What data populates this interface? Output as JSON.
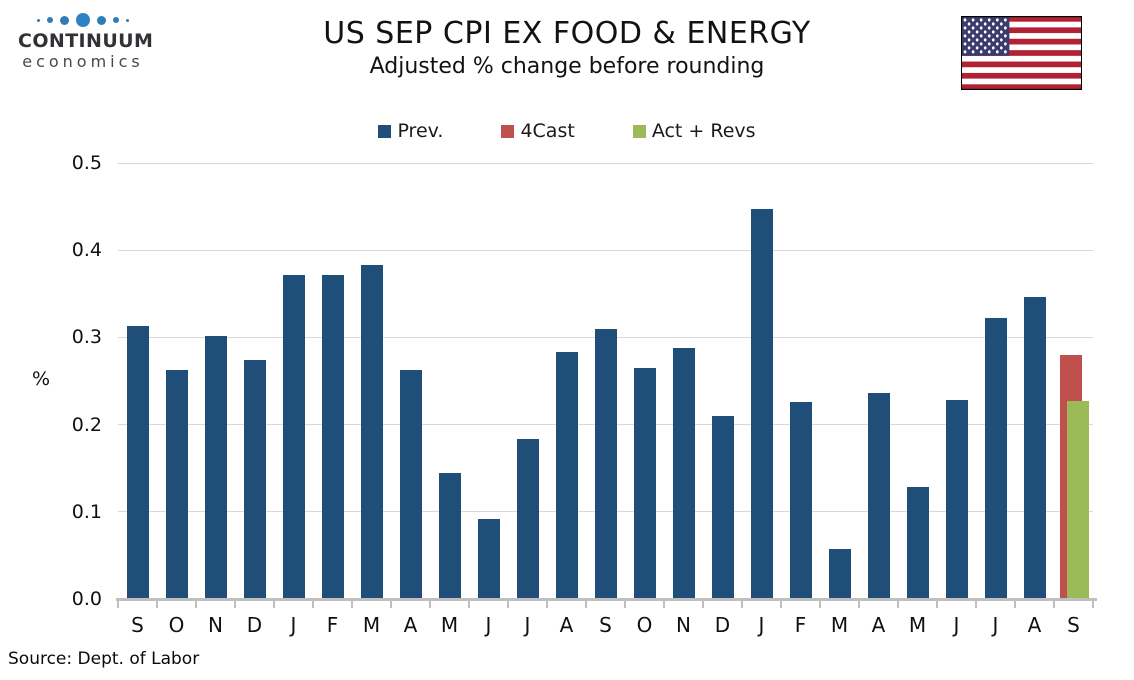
{
  "logo": {
    "name": "CONTINUUM",
    "tagline": "economics"
  },
  "header": {
    "title": "US SEP CPI EX FOOD & ENERGY",
    "subtitle": "Adjusted % change before rounding"
  },
  "source_note": "Source: Dept. of Labor",
  "colors": {
    "prev": "#1f4e79",
    "forecast": "#c0504d",
    "actual": "#9bbb59",
    "gridline": "#d9d9d9",
    "axis": "#bfbfbf",
    "flag_red": "#b22234",
    "flag_blue": "#3c3b6e"
  },
  "chart_data": {
    "type": "bar",
    "title": "US SEP CPI EX FOOD & ENERGY",
    "subtitle": "Adjusted % change before rounding",
    "ylabel": "%",
    "xlabel": "",
    "ylim": [
      0,
      0.5
    ],
    "yticks": [
      0.0,
      0.1,
      0.2,
      0.3,
      0.4,
      0.5
    ],
    "grid": "horizontal",
    "legend_position": "top",
    "categories": [
      "S",
      "O",
      "N",
      "D",
      "J",
      "F",
      "M",
      "A",
      "M",
      "J",
      "J",
      "A",
      "S",
      "O",
      "N",
      "D",
      "J",
      "F",
      "M",
      "A",
      "M",
      "J",
      "J",
      "A",
      "S"
    ],
    "series": [
      {
        "name": "Prev.",
        "color": "#1f4e79",
        "values": [
          0.313,
          0.263,
          0.302,
          0.274,
          0.371,
          0.372,
          0.383,
          0.263,
          0.144,
          0.092,
          0.184,
          0.283,
          0.31,
          0.265,
          0.288,
          0.21,
          0.447,
          0.226,
          0.057,
          0.236,
          0.129,
          0.228,
          0.322,
          0.346,
          null
        ]
      },
      {
        "name": "4Cast",
        "color": "#c0504d",
        "values": [
          null,
          null,
          null,
          null,
          null,
          null,
          null,
          null,
          null,
          null,
          null,
          null,
          null,
          null,
          null,
          null,
          null,
          null,
          null,
          null,
          null,
          null,
          null,
          null,
          0.28
        ]
      },
      {
        "name": "Act + Revs",
        "color": "#9bbb59",
        "values": [
          null,
          null,
          null,
          null,
          null,
          null,
          null,
          null,
          null,
          null,
          null,
          null,
          null,
          null,
          null,
          null,
          null,
          null,
          null,
          null,
          null,
          null,
          null,
          null,
          0.227
        ]
      }
    ]
  }
}
